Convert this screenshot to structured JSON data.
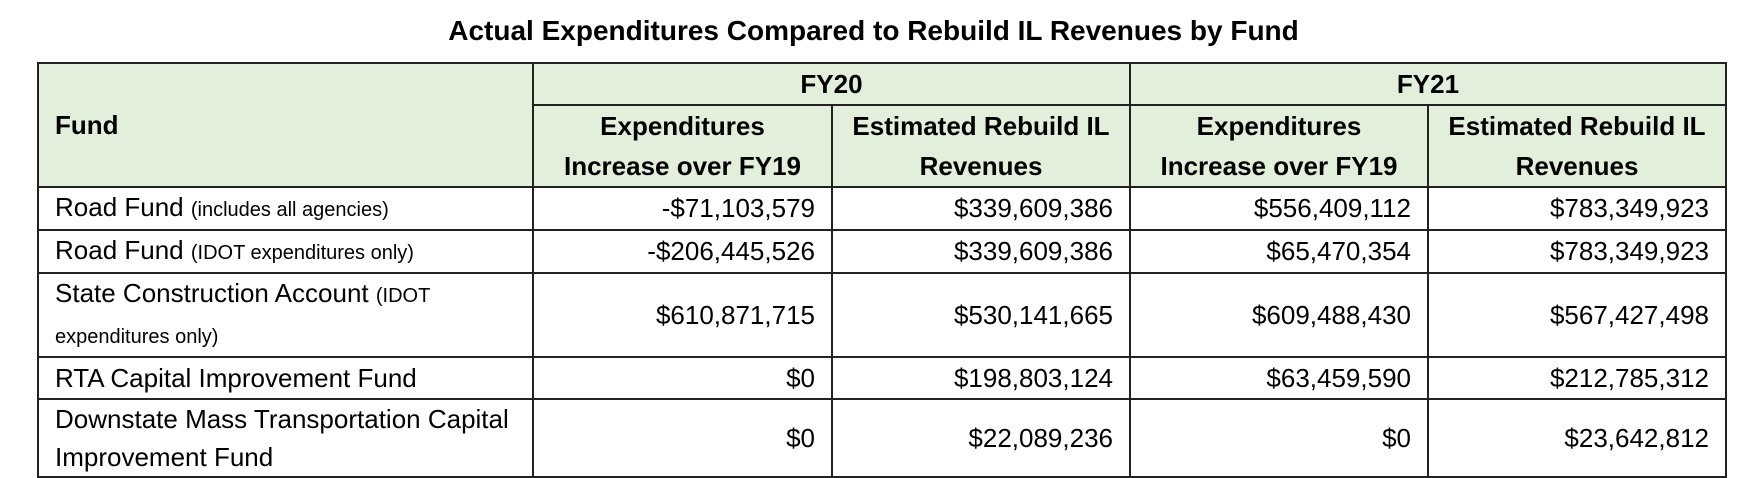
{
  "title": "Actual Expenditures Compared to Rebuild IL Revenues by Fund",
  "table": {
    "fund_header": "Fund",
    "groups": [
      "FY20",
      "FY21"
    ],
    "columns": [
      "Expenditures Increase over FY19",
      "Estimated Rebuild IL Revenues",
      "Expenditures Increase over FY19",
      "Estimated Rebuild IL Revenues"
    ],
    "rows": [
      {
        "fund": "Road Fund",
        "note": "(includes all agencies)",
        "values": [
          "-$71,103,579",
          "$339,609,386",
          "$556,409,112",
          "$783,349,923"
        ]
      },
      {
        "fund": "Road Fund",
        "note": "(IDOT expenditures only)",
        "values": [
          "-$206,445,526",
          "$339,609,386",
          "$65,470,354",
          "$783,349,923"
        ]
      },
      {
        "fund": "State Construction Account",
        "note": "(IDOT expenditures only)",
        "values": [
          "$610,871,715",
          "$530,141,665",
          "$609,488,430",
          "$567,427,498"
        ]
      },
      {
        "fund": "RTA Capital Improvement Fund",
        "values": [
          "$0",
          "$198,803,124",
          "$63,459,590",
          "$212,785,312"
        ]
      },
      {
        "fund": "Downstate Mass Transportation Capital Improvement Fund",
        "values": [
          "$0",
          "$22,089,236",
          "$0",
          "$23,642,812"
        ]
      }
    ]
  }
}
